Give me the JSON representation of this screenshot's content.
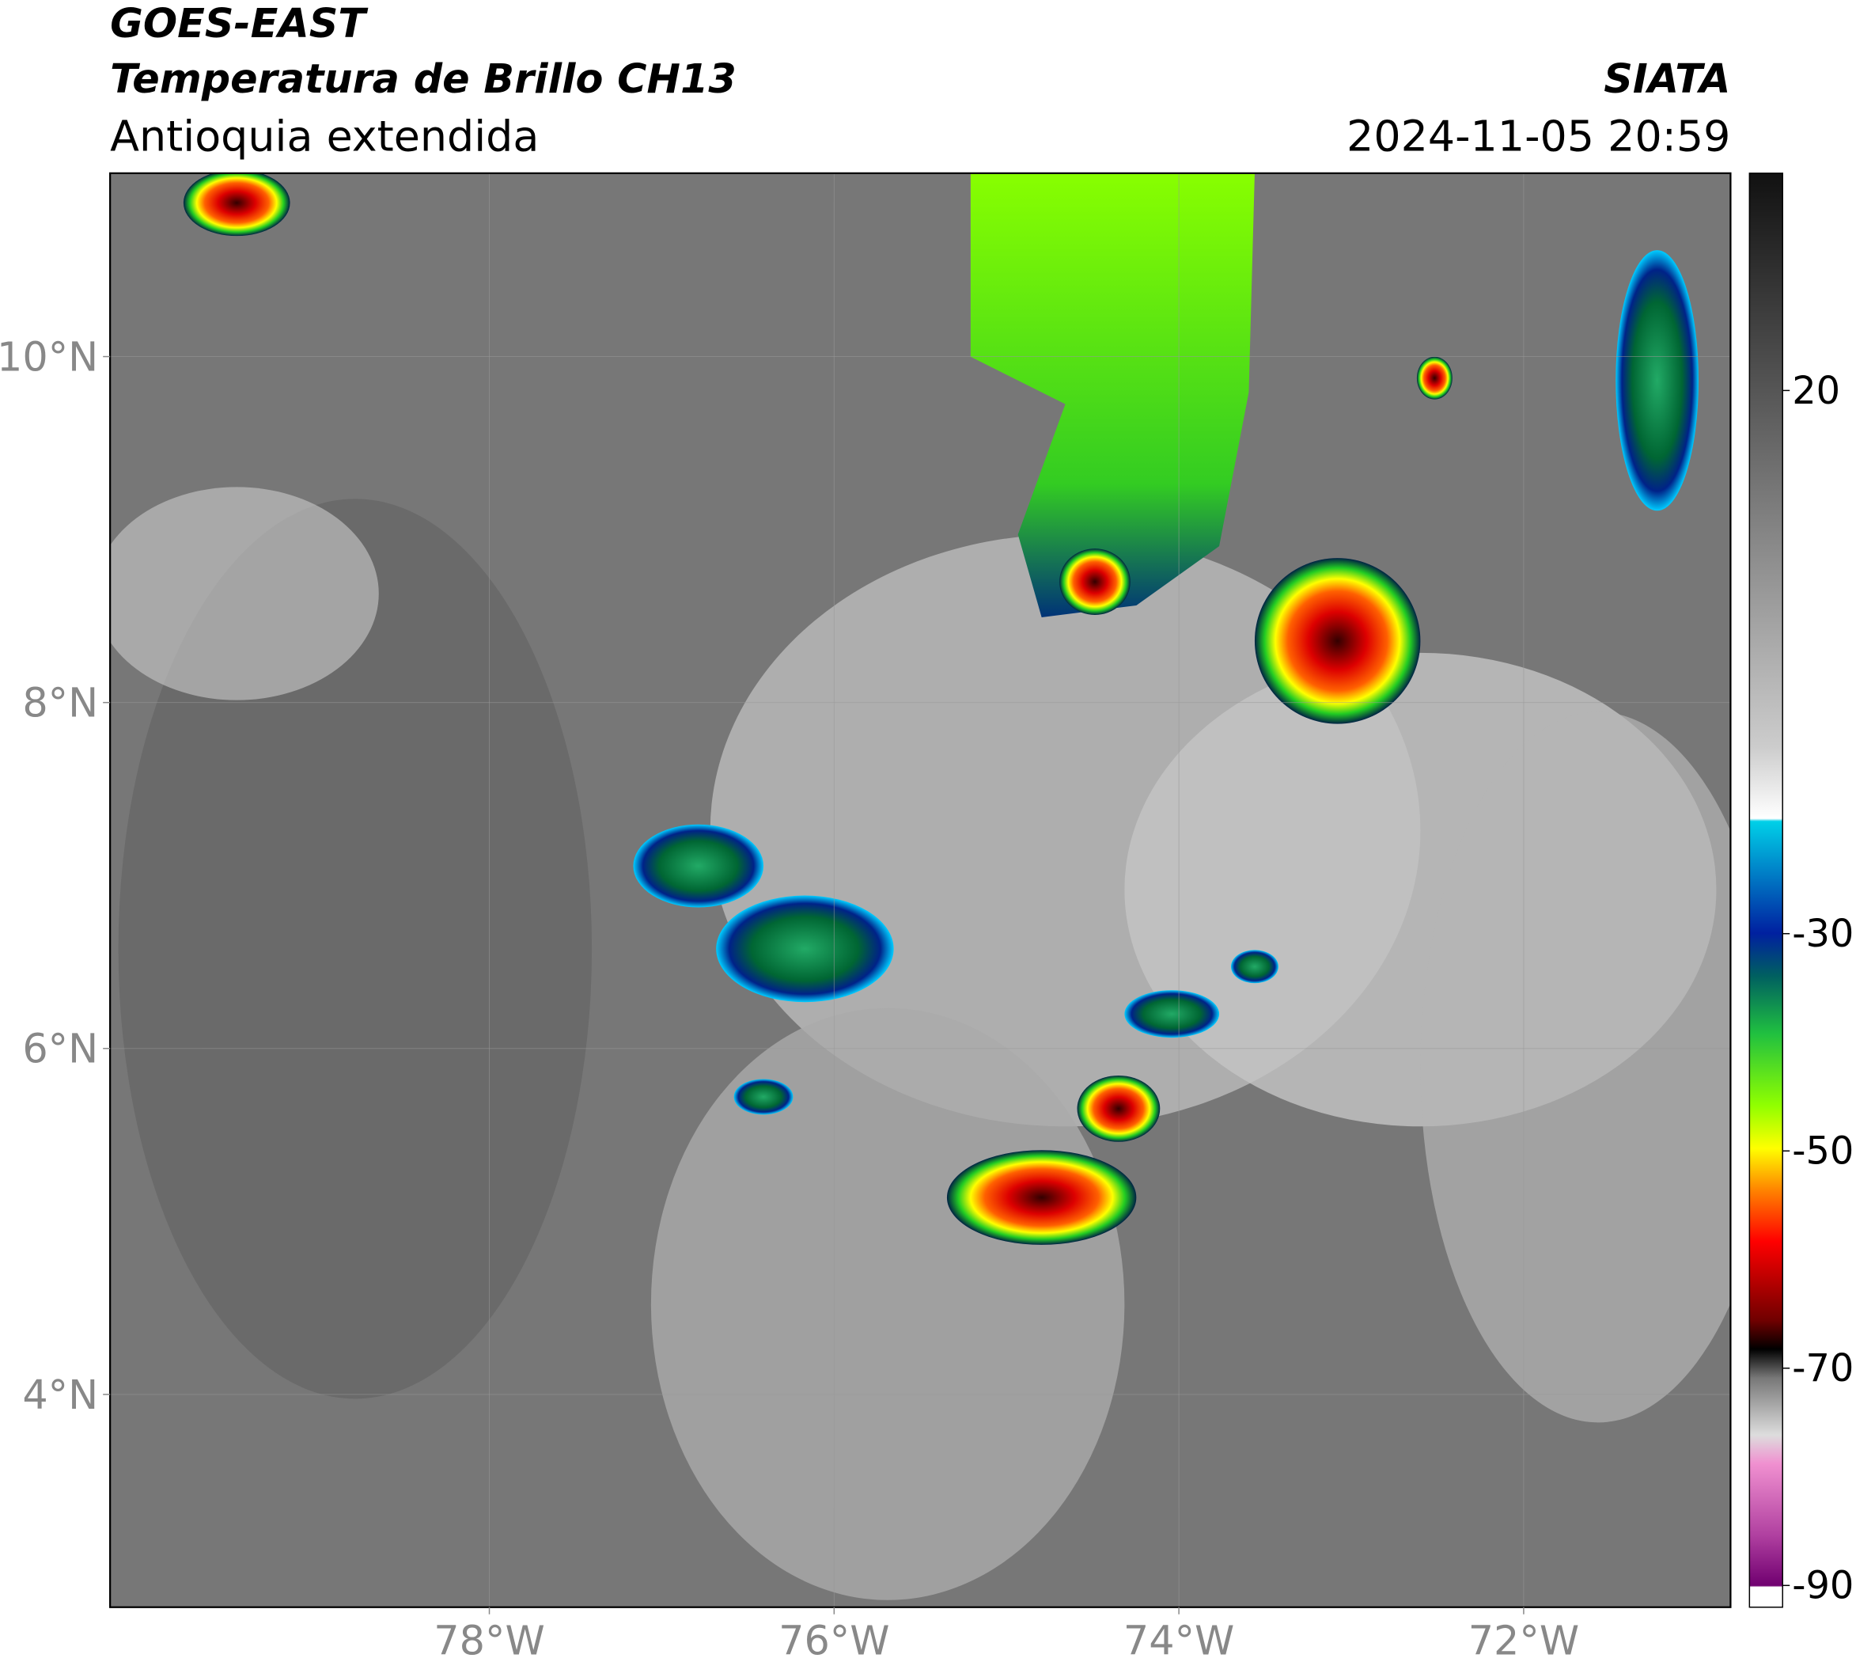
{
  "header": {
    "satellite": "GOES-EAST",
    "title": "Temperatura de Brillo CH13",
    "region": "Antioquia extendida",
    "source": "SIATA",
    "datetime": "2024-11-05 20:59"
  },
  "chart_data": {
    "type": "map",
    "xlim": [
      -80.2,
      -70.8
    ],
    "ylim": [
      2.77,
      11.06
    ],
    "xticks": [
      {
        "value": -78,
        "label": "78°W"
      },
      {
        "value": -76,
        "label": "76°W"
      },
      {
        "value": -74,
        "label": "74°W"
      },
      {
        "value": -72,
        "label": "72°W"
      }
    ],
    "yticks": [
      {
        "value": 4,
        "label": "4°N"
      },
      {
        "value": 6,
        "label": "6°N"
      },
      {
        "value": 8,
        "label": "8°N"
      },
      {
        "value": 10,
        "label": "10°N"
      }
    ],
    "grid": true,
    "colorbar": {
      "lim": [
        -92,
        40
      ],
      "ticks": [
        20,
        -30,
        -50,
        -70,
        -90
      ]
    }
  }
}
